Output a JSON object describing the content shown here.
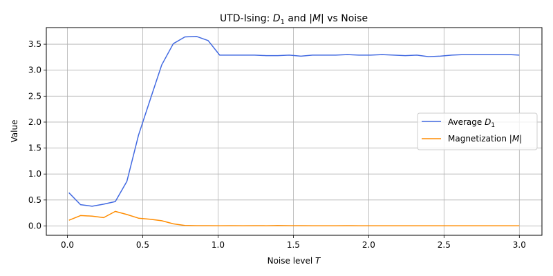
{
  "chart_data": {
    "type": "line",
    "title_parts": [
      "UTD-Ising: ",
      "D",
      "1",
      " and |",
      "M",
      "| vs Noise"
    ],
    "xlabel_parts": [
      "Noise level ",
      "T"
    ],
    "ylabel": "Value",
    "xlim": [
      -0.14,
      3.15
    ],
    "ylim": [
      -0.18,
      3.82
    ],
    "xticks": [
      0.0,
      0.5,
      1.0,
      1.5,
      2.0,
      2.5,
      3.0
    ],
    "xtick_labels": [
      "0.0",
      "0.5",
      "1.0",
      "1.5",
      "2.0",
      "2.5",
      "3.0"
    ],
    "yticks": [
      0.0,
      0.5,
      1.0,
      1.5,
      2.0,
      2.5,
      3.0,
      3.5
    ],
    "ytick_labels": [
      "0.0",
      "0.5",
      "1.0",
      "1.5",
      "2.0",
      "2.5",
      "3.0",
      "3.5"
    ],
    "grid": true,
    "legend_position": "center-right",
    "x": [
      0.01,
      0.087,
      0.164,
      0.241,
      0.318,
      0.395,
      0.472,
      0.549,
      0.626,
      0.703,
      0.78,
      0.857,
      0.934,
      1.011,
      1.088,
      1.165,
      1.242,
      1.319,
      1.396,
      1.473,
      1.55,
      1.627,
      1.704,
      1.781,
      1.858,
      1.935,
      2.012,
      2.089,
      2.166,
      2.243,
      2.32,
      2.397,
      2.474,
      2.551,
      2.628,
      2.705,
      2.782,
      2.859,
      2.936,
      3.0
    ],
    "series": [
      {
        "name_parts": [
          "Average ",
          "D",
          "1"
        ],
        "color": "#4169e1",
        "values": [
          0.64,
          0.41,
          0.38,
          0.42,
          0.47,
          0.86,
          1.75,
          2.43,
          3.1,
          3.51,
          3.64,
          3.65,
          3.57,
          3.29,
          3.29,
          3.29,
          3.29,
          3.28,
          3.28,
          3.29,
          3.27,
          3.29,
          3.29,
          3.29,
          3.3,
          3.29,
          3.29,
          3.3,
          3.29,
          3.28,
          3.29,
          3.26,
          3.27,
          3.29,
          3.3,
          3.3,
          3.3,
          3.3,
          3.3,
          3.29
        ]
      },
      {
        "name_parts": [
          "Magnetization |",
          "M",
          "|"
        ],
        "color": "#ff8c00",
        "values": [
          0.11,
          0.2,
          0.19,
          0.16,
          0.28,
          0.22,
          0.15,
          0.13,
          0.1,
          0.04,
          0.01,
          0.005,
          0.005,
          0.003,
          0.005,
          0.003,
          0.005,
          0.003,
          0.008,
          0.005,
          0.005,
          0.003,
          0.003,
          0.002,
          0.005,
          0.004,
          0.003,
          0.003,
          0.002,
          0.004,
          0.004,
          0.003,
          0.003,
          0.003,
          0.004,
          0.002,
          0.003,
          0.004,
          0.003,
          0.003
        ]
      }
    ]
  }
}
